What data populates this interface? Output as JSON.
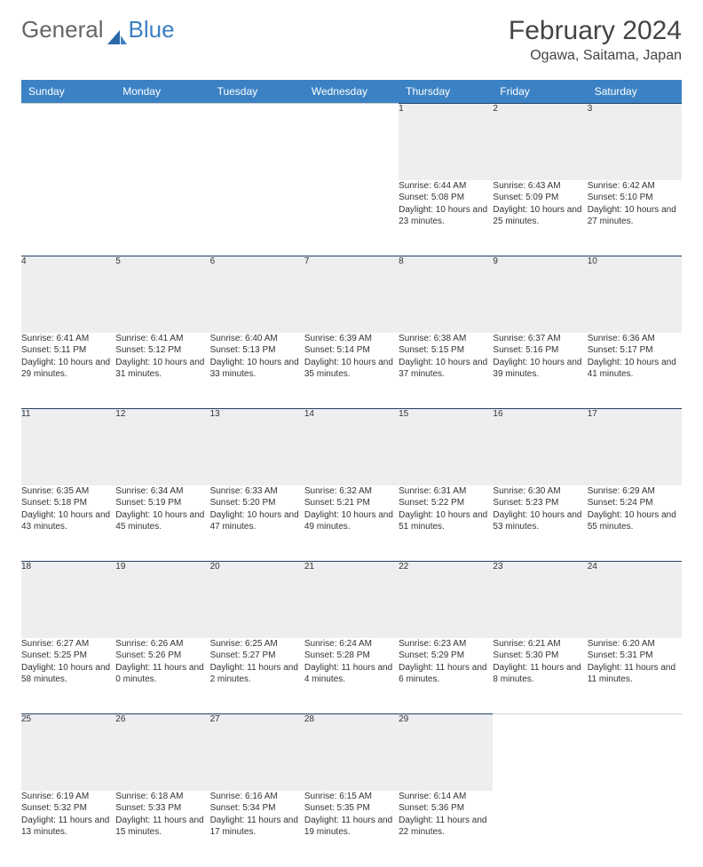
{
  "logo": {
    "part1": "General",
    "part2": "Blue"
  },
  "title": "February 2024",
  "location": "Ogawa, Saitama, Japan",
  "weekdays": [
    "Sunday",
    "Monday",
    "Tuesday",
    "Wednesday",
    "Thursday",
    "Friday",
    "Saturday"
  ],
  "colors": {
    "header_bg": "#3b82c4",
    "header_text": "#ffffff",
    "daynum_bg": "#eceef0",
    "daynum_border": "#204060",
    "text": "#333333"
  },
  "weeks": [
    [
      null,
      null,
      null,
      null,
      {
        "n": "1",
        "sunrise": "Sunrise: 6:44 AM",
        "sunset": "Sunset: 5:08 PM",
        "daylight": "Daylight: 10 hours and 23 minutes."
      },
      {
        "n": "2",
        "sunrise": "Sunrise: 6:43 AM",
        "sunset": "Sunset: 5:09 PM",
        "daylight": "Daylight: 10 hours and 25 minutes."
      },
      {
        "n": "3",
        "sunrise": "Sunrise: 6:42 AM",
        "sunset": "Sunset: 5:10 PM",
        "daylight": "Daylight: 10 hours and 27 minutes."
      }
    ],
    [
      {
        "n": "4",
        "sunrise": "Sunrise: 6:41 AM",
        "sunset": "Sunset: 5:11 PM",
        "daylight": "Daylight: 10 hours and 29 minutes."
      },
      {
        "n": "5",
        "sunrise": "Sunrise: 6:41 AM",
        "sunset": "Sunset: 5:12 PM",
        "daylight": "Daylight: 10 hours and 31 minutes."
      },
      {
        "n": "6",
        "sunrise": "Sunrise: 6:40 AM",
        "sunset": "Sunset: 5:13 PM",
        "daylight": "Daylight: 10 hours and 33 minutes."
      },
      {
        "n": "7",
        "sunrise": "Sunrise: 6:39 AM",
        "sunset": "Sunset: 5:14 PM",
        "daylight": "Daylight: 10 hours and 35 minutes."
      },
      {
        "n": "8",
        "sunrise": "Sunrise: 6:38 AM",
        "sunset": "Sunset: 5:15 PM",
        "daylight": "Daylight: 10 hours and 37 minutes."
      },
      {
        "n": "9",
        "sunrise": "Sunrise: 6:37 AM",
        "sunset": "Sunset: 5:16 PM",
        "daylight": "Daylight: 10 hours and 39 minutes."
      },
      {
        "n": "10",
        "sunrise": "Sunrise: 6:36 AM",
        "sunset": "Sunset: 5:17 PM",
        "daylight": "Daylight: 10 hours and 41 minutes."
      }
    ],
    [
      {
        "n": "11",
        "sunrise": "Sunrise: 6:35 AM",
        "sunset": "Sunset: 5:18 PM",
        "daylight": "Daylight: 10 hours and 43 minutes."
      },
      {
        "n": "12",
        "sunrise": "Sunrise: 6:34 AM",
        "sunset": "Sunset: 5:19 PM",
        "daylight": "Daylight: 10 hours and 45 minutes."
      },
      {
        "n": "13",
        "sunrise": "Sunrise: 6:33 AM",
        "sunset": "Sunset: 5:20 PM",
        "daylight": "Daylight: 10 hours and 47 minutes."
      },
      {
        "n": "14",
        "sunrise": "Sunrise: 6:32 AM",
        "sunset": "Sunset: 5:21 PM",
        "daylight": "Daylight: 10 hours and 49 minutes."
      },
      {
        "n": "15",
        "sunrise": "Sunrise: 6:31 AM",
        "sunset": "Sunset: 5:22 PM",
        "daylight": "Daylight: 10 hours and 51 minutes."
      },
      {
        "n": "16",
        "sunrise": "Sunrise: 6:30 AM",
        "sunset": "Sunset: 5:23 PM",
        "daylight": "Daylight: 10 hours and 53 minutes."
      },
      {
        "n": "17",
        "sunrise": "Sunrise: 6:29 AM",
        "sunset": "Sunset: 5:24 PM",
        "daylight": "Daylight: 10 hours and 55 minutes."
      }
    ],
    [
      {
        "n": "18",
        "sunrise": "Sunrise: 6:27 AM",
        "sunset": "Sunset: 5:25 PM",
        "daylight": "Daylight: 10 hours and 58 minutes."
      },
      {
        "n": "19",
        "sunrise": "Sunrise: 6:26 AM",
        "sunset": "Sunset: 5:26 PM",
        "daylight": "Daylight: 11 hours and 0 minutes."
      },
      {
        "n": "20",
        "sunrise": "Sunrise: 6:25 AM",
        "sunset": "Sunset: 5:27 PM",
        "daylight": "Daylight: 11 hours and 2 minutes."
      },
      {
        "n": "21",
        "sunrise": "Sunrise: 6:24 AM",
        "sunset": "Sunset: 5:28 PM",
        "daylight": "Daylight: 11 hours and 4 minutes."
      },
      {
        "n": "22",
        "sunrise": "Sunrise: 6:23 AM",
        "sunset": "Sunset: 5:29 PM",
        "daylight": "Daylight: 11 hours and 6 minutes."
      },
      {
        "n": "23",
        "sunrise": "Sunrise: 6:21 AM",
        "sunset": "Sunset: 5:30 PM",
        "daylight": "Daylight: 11 hours and 8 minutes."
      },
      {
        "n": "24",
        "sunrise": "Sunrise: 6:20 AM",
        "sunset": "Sunset: 5:31 PM",
        "daylight": "Daylight: 11 hours and 11 minutes."
      }
    ],
    [
      {
        "n": "25",
        "sunrise": "Sunrise: 6:19 AM",
        "sunset": "Sunset: 5:32 PM",
        "daylight": "Daylight: 11 hours and 13 minutes."
      },
      {
        "n": "26",
        "sunrise": "Sunrise: 6:18 AM",
        "sunset": "Sunset: 5:33 PM",
        "daylight": "Daylight: 11 hours and 15 minutes."
      },
      {
        "n": "27",
        "sunrise": "Sunrise: 6:16 AM",
        "sunset": "Sunset: 5:34 PM",
        "daylight": "Daylight: 11 hours and 17 minutes."
      },
      {
        "n": "28",
        "sunrise": "Sunrise: 6:15 AM",
        "sunset": "Sunset: 5:35 PM",
        "daylight": "Daylight: 11 hours and 19 minutes."
      },
      {
        "n": "29",
        "sunrise": "Sunrise: 6:14 AM",
        "sunset": "Sunset: 5:36 PM",
        "daylight": "Daylight: 11 hours and 22 minutes."
      },
      null,
      null
    ]
  ]
}
